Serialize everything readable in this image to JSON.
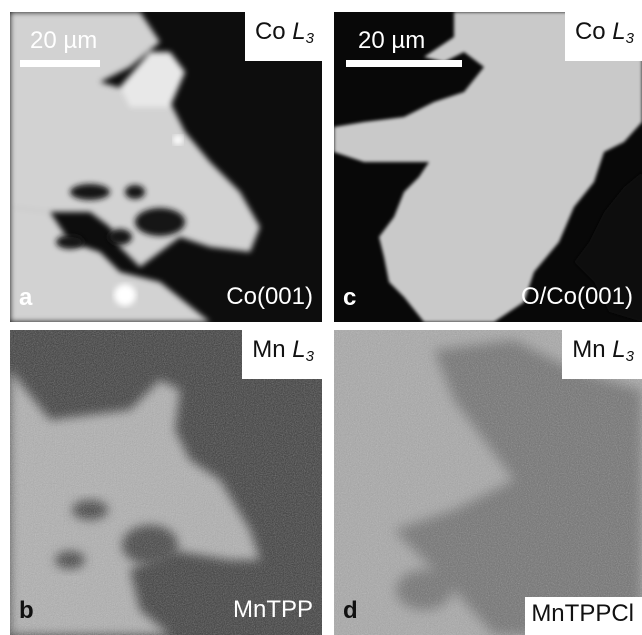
{
  "panels": {
    "a": {
      "letter": "a",
      "element": "Co",
      "edge_l": "L",
      "edge_sub": "3",
      "sample": "Co(001)",
      "scale_label": "20 µm"
    },
    "b": {
      "letter": "b",
      "element": "Mn",
      "edge_l": "L",
      "edge_sub": "3",
      "sample": "MnTPP"
    },
    "c": {
      "letter": "c",
      "element": "Co",
      "edge_l": "L",
      "edge_sub": "3",
      "sample": "O/Co(001)",
      "scale_label": "20 µm"
    },
    "d": {
      "letter": "d",
      "element": "Mn",
      "edge_l": "L",
      "edge_sub": "3",
      "sample": "MnTPPCl"
    }
  },
  "colors": {
    "bright": "#cfcfcf",
    "dark": "#101010",
    "mid_light": "#b4b4b4",
    "mid_dark": "#4a4a4a"
  }
}
